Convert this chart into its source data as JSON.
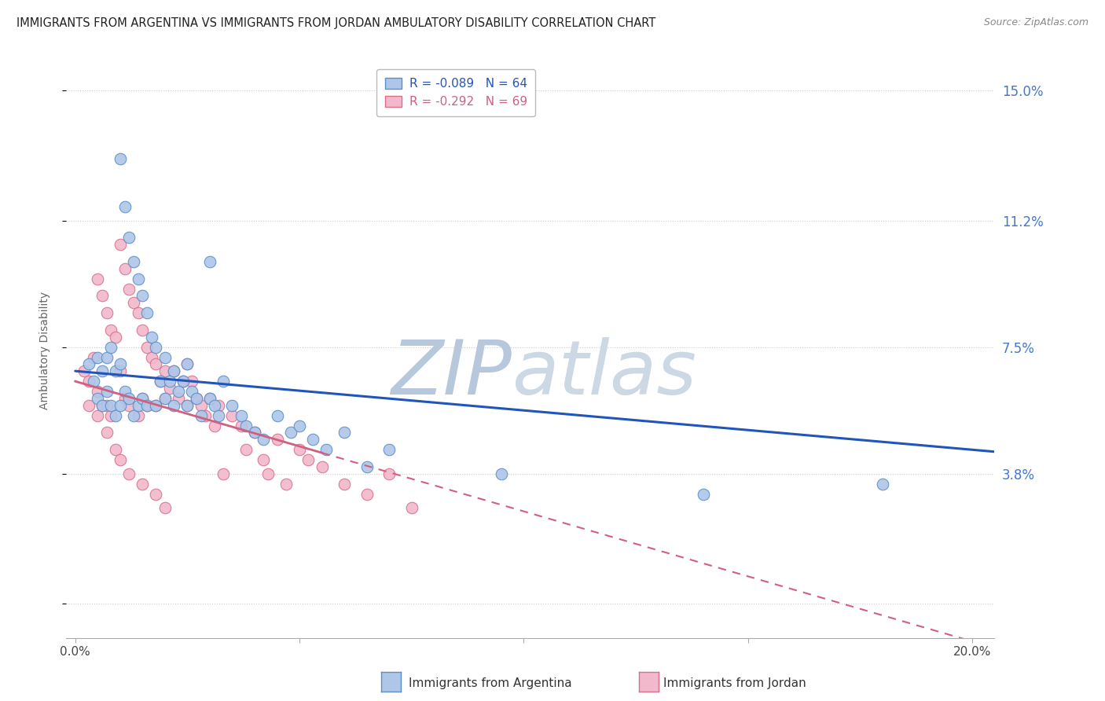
{
  "title": "IMMIGRANTS FROM ARGENTINA VS IMMIGRANTS FROM JORDAN AMBULATORY DISABILITY CORRELATION CHART",
  "source": "Source: ZipAtlas.com",
  "ylabel": "Ambulatory Disability",
  "ytick_vals": [
    0.0,
    0.038,
    0.075,
    0.112,
    0.15
  ],
  "ytick_labels": [
    "",
    "3.8%",
    "7.5%",
    "11.2%",
    "15.0%"
  ],
  "xtick_vals": [
    0.0,
    0.05,
    0.1,
    0.15,
    0.2
  ],
  "xtick_labels": [
    "0.0%",
    "",
    "",
    "",
    "20.0%"
  ],
  "xlim": [
    -0.002,
    0.205
  ],
  "ylim": [
    -0.01,
    0.158
  ],
  "legend_r_argentina": "R = -0.089",
  "legend_n_argentina": "N = 64",
  "legend_r_jordan": "R = -0.292",
  "legend_n_jordan": "N = 69",
  "argentina_color": "#aec6e8",
  "argentina_edge": "#5b8fc9",
  "jordan_color": "#f2b8cb",
  "jordan_edge": "#d9708a",
  "trendline_argentina_color": "#2255bb",
  "trendline_jordan_color": "#d06080",
  "watermark_zip": "ZIP",
  "watermark_atlas": "atlas",
  "watermark_color": "#ccd8e8",
  "argentina_scatter_x": [
    0.003,
    0.004,
    0.005,
    0.005,
    0.006,
    0.006,
    0.007,
    0.007,
    0.008,
    0.008,
    0.009,
    0.009,
    0.01,
    0.01,
    0.01,
    0.011,
    0.011,
    0.012,
    0.012,
    0.013,
    0.013,
    0.014,
    0.014,
    0.015,
    0.015,
    0.016,
    0.016,
    0.017,
    0.018,
    0.018,
    0.019,
    0.02,
    0.02,
    0.021,
    0.022,
    0.022,
    0.023,
    0.024,
    0.025,
    0.025,
    0.026,
    0.027,
    0.028,
    0.03,
    0.031,
    0.032,
    0.033,
    0.035,
    0.037,
    0.038,
    0.04,
    0.042,
    0.045,
    0.048,
    0.05,
    0.053,
    0.056,
    0.06,
    0.065,
    0.07,
    0.095,
    0.14,
    0.18,
    0.03
  ],
  "argentina_scatter_y": [
    0.07,
    0.065,
    0.072,
    0.06,
    0.068,
    0.058,
    0.072,
    0.062,
    0.075,
    0.058,
    0.068,
    0.055,
    0.13,
    0.07,
    0.058,
    0.116,
    0.062,
    0.107,
    0.06,
    0.1,
    0.055,
    0.095,
    0.058,
    0.09,
    0.06,
    0.085,
    0.058,
    0.078,
    0.075,
    0.058,
    0.065,
    0.072,
    0.06,
    0.065,
    0.068,
    0.058,
    0.062,
    0.065,
    0.07,
    0.058,
    0.062,
    0.06,
    0.055,
    0.06,
    0.058,
    0.055,
    0.065,
    0.058,
    0.055,
    0.052,
    0.05,
    0.048,
    0.055,
    0.05,
    0.052,
    0.048,
    0.045,
    0.05,
    0.04,
    0.045,
    0.038,
    0.032,
    0.035,
    0.1
  ],
  "jordan_scatter_x": [
    0.002,
    0.003,
    0.004,
    0.005,
    0.005,
    0.006,
    0.006,
    0.007,
    0.007,
    0.008,
    0.008,
    0.009,
    0.01,
    0.01,
    0.011,
    0.011,
    0.012,
    0.012,
    0.013,
    0.014,
    0.014,
    0.015,
    0.015,
    0.016,
    0.016,
    0.017,
    0.018,
    0.018,
    0.019,
    0.02,
    0.02,
    0.021,
    0.022,
    0.023,
    0.024,
    0.025,
    0.025,
    0.026,
    0.027,
    0.028,
    0.029,
    0.03,
    0.031,
    0.032,
    0.033,
    0.035,
    0.037,
    0.038,
    0.04,
    0.042,
    0.043,
    0.045,
    0.047,
    0.05,
    0.052,
    0.055,
    0.06,
    0.065,
    0.07,
    0.075,
    0.003,
    0.005,
    0.007,
    0.009,
    0.01,
    0.012,
    0.015,
    0.018,
    0.02
  ],
  "jordan_scatter_y": [
    0.068,
    0.065,
    0.072,
    0.095,
    0.062,
    0.09,
    0.058,
    0.085,
    0.058,
    0.08,
    0.055,
    0.078,
    0.105,
    0.068,
    0.098,
    0.06,
    0.092,
    0.058,
    0.088,
    0.085,
    0.055,
    0.08,
    0.06,
    0.075,
    0.058,
    0.072,
    0.07,
    0.058,
    0.065,
    0.068,
    0.06,
    0.063,
    0.068,
    0.06,
    0.065,
    0.07,
    0.058,
    0.065,
    0.06,
    0.058,
    0.055,
    0.06,
    0.052,
    0.058,
    0.038,
    0.055,
    0.052,
    0.045,
    0.05,
    0.042,
    0.038,
    0.048,
    0.035,
    0.045,
    0.042,
    0.04,
    0.035,
    0.032,
    0.038,
    0.028,
    0.058,
    0.055,
    0.05,
    0.045,
    0.042,
    0.038,
    0.035,
    0.032,
    0.028
  ]
}
